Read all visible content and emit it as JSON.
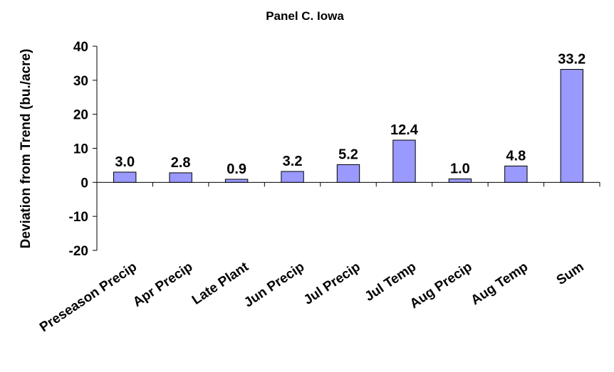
{
  "chart_data": {
    "type": "bar",
    "title": "Panel C. Iowa",
    "ylabel": "Deviation from Trend (bu./acre)",
    "xlabel": "",
    "categories": [
      "Preseason Precip",
      "Apr Precip",
      "Late Plant",
      "Jun Precip",
      "Jul Precip",
      "Jul Temp",
      "Aug Precip",
      "Aug Temp",
      "Sum"
    ],
    "values": [
      3.0,
      2.8,
      0.9,
      3.2,
      5.2,
      12.4,
      1.0,
      4.8,
      33.2
    ],
    "data_labels": [
      "3.0",
      "2.8",
      "0.9",
      "3.2",
      "5.2",
      "12.4",
      "1.0",
      "4.8",
      "33.2"
    ],
    "ylim": [
      -20,
      40
    ],
    "yticks": [
      -20,
      -10,
      0,
      10,
      20,
      30,
      40
    ],
    "grid": false,
    "legend": "none",
    "colors": {
      "bar_fill": "#9999ff",
      "bar_stroke": "#000000",
      "axis": "#000000"
    }
  }
}
